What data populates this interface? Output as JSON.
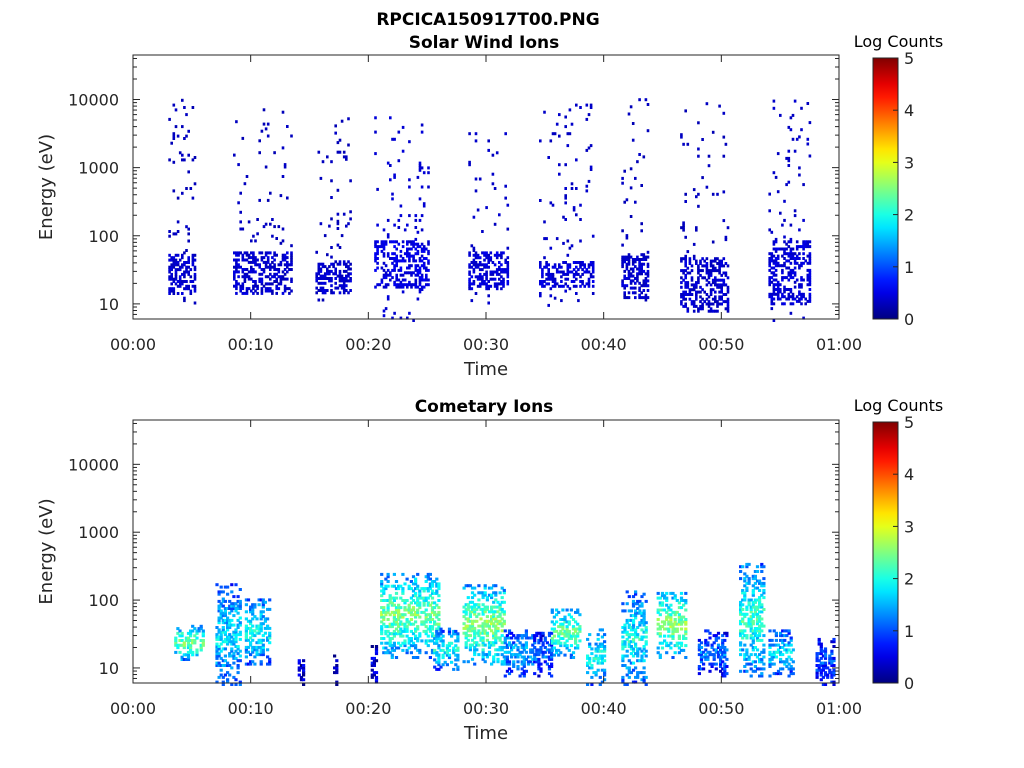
{
  "figure": {
    "title": "RPCICA150917T00.PNG",
    "background": "#ffffff"
  },
  "chart_data": [
    {
      "type": "heatmap",
      "title": "Solar Wind Ions",
      "xlabel": "Time",
      "ylabel": "Energy (eV)",
      "x_ticks": [
        "00:00",
        "00:10",
        "00:20",
        "00:30",
        "00:40",
        "00:50",
        "01:00"
      ],
      "x_range_min": [
        0,
        60
      ],
      "y_ticks": [
        "10",
        "100",
        "1000",
        "10000"
      ],
      "y_scale": "log",
      "y_range_eV": [
        6,
        45000
      ],
      "colorbar": {
        "label": "Log Counts",
        "ticks": [
          "0",
          "1",
          "2",
          "3",
          "4",
          "5"
        ],
        "range": [
          0,
          5
        ],
        "colormap": "jet"
      },
      "clusters": [
        {
          "t": [
            3.0,
            5.2
          ],
          "e": [
            10,
            13000
          ],
          "low_e": [
            14,
            55
          ],
          "level": 0.25
        },
        {
          "t": [
            8.5,
            13.5
          ],
          "e": [
            15,
            8000
          ],
          "low_e": [
            12,
            60
          ],
          "level": 0.25
        },
        {
          "t": [
            15.5,
            18.5
          ],
          "e": [
            12,
            5500
          ],
          "low_e": [
            15,
            45
          ],
          "level": 0.25
        },
        {
          "t": [
            20.5,
            25.0
          ],
          "e": [
            6,
            6000
          ],
          "low_e": [
            18,
            90
          ],
          "level": 0.35
        },
        {
          "t": [
            28.5,
            31.8
          ],
          "e": [
            10,
            4000
          ],
          "low_e": [
            17,
            60
          ],
          "level": 0.3
        },
        {
          "t": [
            34.5,
            39.0
          ],
          "e": [
            10,
            9000
          ],
          "low_e": [
            18,
            45
          ],
          "level": 0.3
        },
        {
          "t": [
            41.5,
            43.8
          ],
          "e": [
            12,
            11000
          ],
          "low_e": [
            13,
            60
          ],
          "level": 0.25
        },
        {
          "t": [
            46.5,
            50.5
          ],
          "e": [
            7,
            9500
          ],
          "low_e": [
            8,
            50
          ],
          "level": 0.25
        },
        {
          "t": [
            54.0,
            57.5
          ],
          "e": [
            6,
            11000
          ],
          "low_e": [
            10,
            90
          ],
          "level": 0.3
        }
      ]
    },
    {
      "type": "heatmap",
      "title": "Cometary Ions",
      "xlabel": "Time",
      "ylabel": "Energy (eV)",
      "x_ticks": [
        "00:00",
        "00:10",
        "00:20",
        "00:30",
        "00:40",
        "00:50",
        "01:00"
      ],
      "x_range_min": [
        0,
        60
      ],
      "y_ticks": [
        "10",
        "100",
        "1000",
        "10000"
      ],
      "y_scale": "log",
      "y_range_eV": [
        6,
        45000
      ],
      "colorbar": {
        "label": "Log Counts",
        "ticks": [
          "0",
          "1",
          "2",
          "3",
          "4",
          "5"
        ],
        "range": [
          0,
          5
        ],
        "colormap": "jet"
      },
      "clusters": [
        {
          "t": [
            3.5,
            6.0
          ],
          "e": [
            14,
            45
          ],
          "level": 2.5
        },
        {
          "t": [
            7.0,
            9.0
          ],
          "e": [
            6,
            180
          ],
          "level": 1.8
        },
        {
          "t": [
            9.5,
            11.5
          ],
          "e": [
            12,
            110
          ],
          "level": 2.0
        },
        {
          "t": [
            14.0,
            14.4
          ],
          "e": [
            6,
            17
          ],
          "level": 0.4
        },
        {
          "t": [
            17.0,
            17.3
          ],
          "e": [
            6,
            17
          ],
          "level": 0.4
        },
        {
          "t": [
            20.2,
            20.7
          ],
          "e": [
            6,
            22
          ],
          "level": 0.5
        },
        {
          "t": [
            21.0,
            26.0
          ],
          "e": [
            15,
            260
          ],
          "level": 2.5
        },
        {
          "t": [
            25.5,
            27.5
          ],
          "e": [
            10,
            40
          ],
          "level": 2.0
        },
        {
          "t": [
            28.0,
            31.5
          ],
          "e": [
            12,
            180
          ],
          "level": 2.6
        },
        {
          "t": [
            31.5,
            34.0
          ],
          "e": [
            8,
            40
          ],
          "level": 1.5
        },
        {
          "t": [
            34.0,
            35.5
          ],
          "e": [
            8,
            35
          ],
          "level": 1.2
        },
        {
          "t": [
            35.5,
            38.0
          ],
          "e": [
            15,
            80
          ],
          "level": 2.4
        },
        {
          "t": [
            38.5,
            40.0
          ],
          "e": [
            6,
            40
          ],
          "level": 2.0
        },
        {
          "t": [
            41.5,
            43.5
          ],
          "e": [
            6,
            140
          ],
          "level": 2.0
        },
        {
          "t": [
            44.5,
            47.0
          ],
          "e": [
            15,
            140
          ],
          "level": 2.7
        },
        {
          "t": [
            48.0,
            50.5
          ],
          "e": [
            8,
            38
          ],
          "level": 1.2
        },
        {
          "t": [
            51.5,
            53.5
          ],
          "e": [
            8,
            380
          ],
          "level": 2.2
        },
        {
          "t": [
            54.0,
            56.0
          ],
          "e": [
            8,
            38
          ],
          "level": 1.8
        },
        {
          "t": [
            58.0,
            59.5
          ],
          "e": [
            6,
            28
          ],
          "level": 1.0
        }
      ]
    }
  ]
}
